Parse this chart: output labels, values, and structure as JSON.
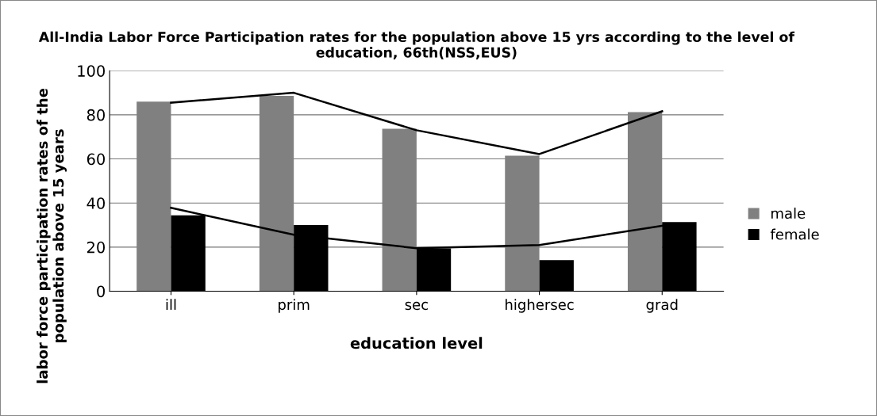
{
  "chart_data": {
    "type": "bar",
    "title": "All-India Labor Force Participation rates for the population above 15 yrs according to the level of education, 66th(NSS,EUS)",
    "xlabel": "education level",
    "ylabel": "labor force participation rates of the population above 15 years",
    "categories": [
      "ill",
      "prim",
      "sec",
      "highersec",
      "grad"
    ],
    "series": [
      {
        "name": "male",
        "color": "#808080",
        "values": [
          86,
          88.6,
          73.7,
          61.5,
          81.2
        ]
      },
      {
        "name": "female",
        "color": "#000000",
        "values": [
          34.4,
          30,
          19.4,
          14.1,
          31.4
        ]
      },
      {
        "type": "line",
        "color": "#000000",
        "values": [
          85.5,
          90,
          73,
          62.2,
          81.6
        ]
      },
      {
        "type": "line",
        "color": "#000000",
        "values": [
          37.8,
          25.6,
          19.5,
          20.9,
          29.7
        ]
      }
    ],
    "ylim": [
      0,
      100
    ],
    "yticks": [
      0,
      20,
      40,
      60,
      80,
      100
    ],
    "grid": "y",
    "legend": "right"
  }
}
